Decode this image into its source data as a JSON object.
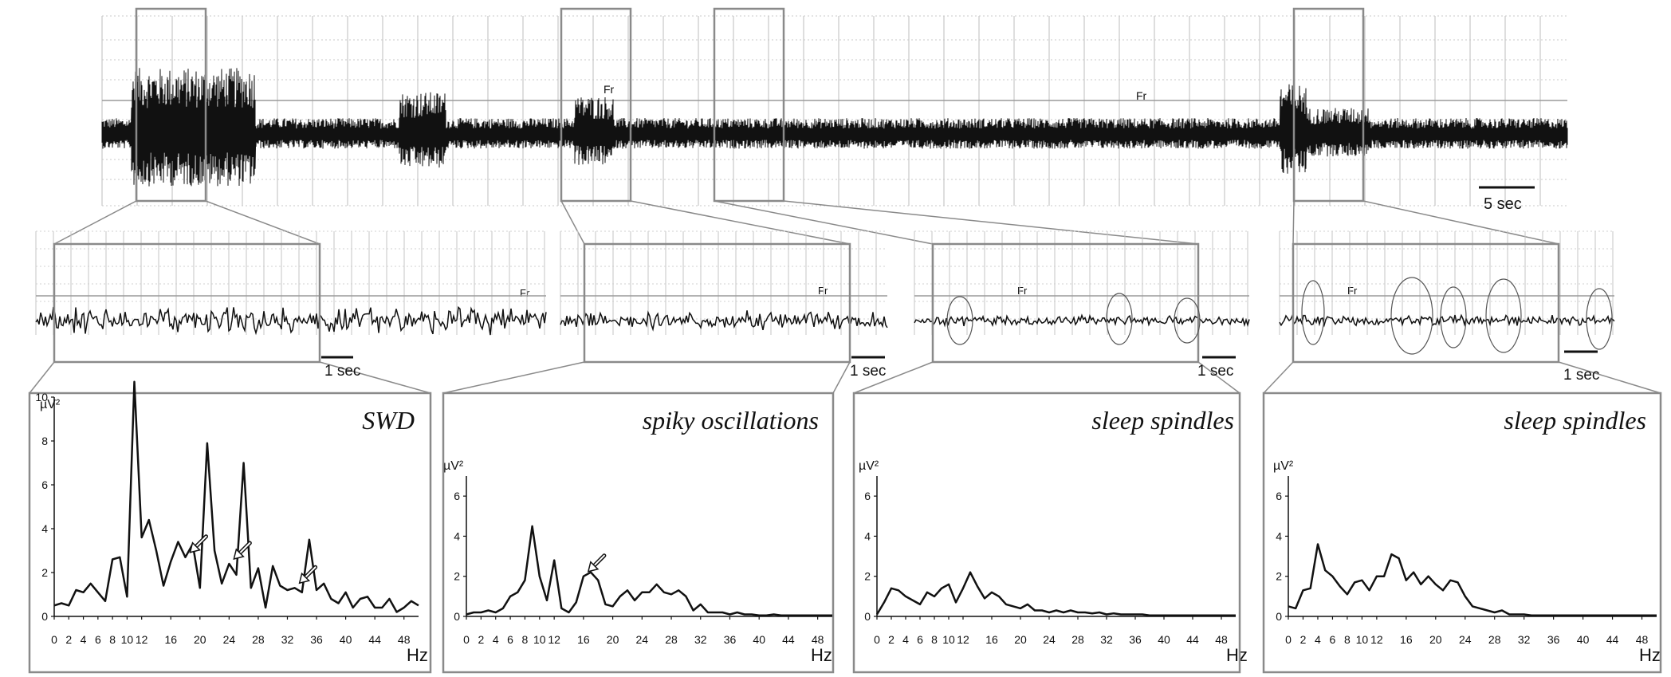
{
  "eeg": {
    "channel_label": "Fr",
    "scale_top": "5 sec",
    "scale_zoom": [
      "1 sec",
      "1 sec",
      "1 sec",
      "1 sec"
    ]
  },
  "chart_data": [
    {
      "type": "line",
      "title": "SWD",
      "ylabel": "µV²",
      "xlabel": "Hz",
      "ylim": [
        0,
        10
      ],
      "yticks": [
        "0",
        "2",
        "4",
        "6",
        "8",
        "10"
      ],
      "xticks": [
        "0",
        "2",
        "4",
        "6",
        "8",
        "10",
        "12",
        "16",
        "20",
        "24",
        "28",
        "32",
        "36",
        "40",
        "44",
        "48"
      ],
      "x": [
        0,
        1,
        2,
        3,
        4,
        5,
        6,
        7,
        8,
        9,
        10,
        11,
        12,
        13,
        14,
        15,
        16,
        17,
        18,
        19,
        20,
        21,
        22,
        23,
        24,
        25,
        26,
        27,
        28,
        29,
        30,
        31,
        32,
        33,
        34,
        35,
        36,
        37,
        38,
        39,
        40,
        41,
        42,
        43,
        44,
        45,
        46,
        47,
        48,
        49,
        50
      ],
      "values": [
        0.5,
        0.6,
        0.5,
        1.2,
        1.1,
        1.5,
        1.1,
        0.7,
        2.6,
        2.7,
        0.9,
        10.7,
        3.6,
        4.4,
        3.0,
        1.4,
        2.5,
        3.4,
        2.7,
        3.3,
        1.3,
        7.9,
        3.0,
        1.5,
        2.4,
        1.9,
        7.0,
        1.3,
        2.2,
        0.4,
        2.3,
        1.4,
        1.2,
        1.3,
        1.1,
        3.5,
        1.2,
        1.5,
        0.8,
        0.6,
        1.1,
        0.4,
        0.8,
        0.9,
        0.4,
        0.4,
        0.8,
        0.2,
        0.4,
        0.7,
        0.5
      ],
      "arrows_at_hz": [
        18,
        24,
        33
      ]
    },
    {
      "type": "line",
      "title": "spiky oscillations",
      "ylabel": "µV²",
      "xlabel": "Hz",
      "ylim": [
        0,
        7
      ],
      "yticks": [
        "0",
        "2",
        "4",
        "6"
      ],
      "xticks": [
        "0",
        "2",
        "4",
        "6",
        "8",
        "10",
        "12",
        "16",
        "20",
        "24",
        "28",
        "32",
        "36",
        "40",
        "44",
        "48"
      ],
      "x": [
        0,
        1,
        2,
        3,
        4,
        5,
        6,
        7,
        8,
        9,
        10,
        11,
        12,
        13,
        14,
        15,
        16,
        17,
        18,
        19,
        20,
        21,
        22,
        23,
        24,
        25,
        26,
        27,
        28,
        29,
        30,
        31,
        32,
        33,
        34,
        35,
        36,
        37,
        38,
        39,
        40,
        41,
        42,
        43,
        44,
        45,
        46,
        47,
        48,
        49,
        50
      ],
      "values": [
        0.1,
        0.2,
        0.2,
        0.3,
        0.2,
        0.4,
        1.0,
        1.2,
        1.8,
        4.5,
        2.0,
        0.8,
        2.8,
        0.4,
        0.2,
        0.7,
        2.0,
        2.2,
        1.8,
        0.6,
        0.5,
        1.0,
        1.3,
        0.8,
        1.2,
        1.2,
        1.6,
        1.2,
        1.1,
        1.3,
        1.0,
        0.3,
        0.6,
        0.2,
        0.2,
        0.2,
        0.1,
        0.2,
        0.1,
        0.1,
        0.05,
        0.05,
        0.1,
        0.05,
        0.05,
        0.05,
        0.05,
        0.05,
        0.05,
        0.05,
        0.05
      ],
      "arrows_at_hz": [
        16
      ]
    },
    {
      "type": "line",
      "title": "sleep spindles",
      "ylabel": "µV²",
      "xlabel": "Hz",
      "ylim": [
        0,
        7
      ],
      "yticks": [
        "0",
        "2",
        "4",
        "6"
      ],
      "xticks": [
        "0",
        "2",
        "4",
        "6",
        "8",
        "10",
        "12",
        "16",
        "20",
        "24",
        "28",
        "32",
        "36",
        "40",
        "44",
        "48"
      ],
      "x": [
        0,
        1,
        2,
        3,
        4,
        5,
        6,
        7,
        8,
        9,
        10,
        11,
        12,
        13,
        14,
        15,
        16,
        17,
        18,
        19,
        20,
        21,
        22,
        23,
        24,
        25,
        26,
        27,
        28,
        29,
        30,
        31,
        32,
        33,
        34,
        35,
        36,
        37,
        38,
        39,
        40,
        41,
        42,
        43,
        44,
        45,
        46,
        47,
        48,
        49,
        50
      ],
      "values": [
        0.1,
        0.7,
        1.4,
        1.3,
        1.0,
        0.8,
        0.6,
        1.2,
        1.0,
        1.4,
        1.6,
        0.7,
        1.4,
        2.2,
        1.5,
        0.9,
        1.2,
        1.0,
        0.6,
        0.5,
        0.4,
        0.6,
        0.3,
        0.3,
        0.2,
        0.3,
        0.2,
        0.3,
        0.2,
        0.2,
        0.15,
        0.2,
        0.1,
        0.15,
        0.1,
        0.1,
        0.1,
        0.1,
        0.05,
        0.05,
        0.05,
        0.05,
        0.05,
        0.05,
        0.05,
        0.05,
        0.05,
        0.05,
        0.05,
        0.05,
        0.05
      ]
    },
    {
      "type": "line",
      "title": "sleep spindles",
      "ylabel": "µV²",
      "xlabel": "Hz",
      "ylim": [
        0,
        7
      ],
      "yticks": [
        "0",
        "2",
        "4",
        "6"
      ],
      "xticks": [
        "0",
        "2",
        "4",
        "6",
        "8",
        "10",
        "12",
        "16",
        "20",
        "24",
        "28",
        "32",
        "36",
        "40",
        "44",
        "48"
      ],
      "x": [
        0,
        1,
        2,
        3,
        4,
        5,
        6,
        7,
        8,
        9,
        10,
        11,
        12,
        13,
        14,
        15,
        16,
        17,
        18,
        19,
        20,
        21,
        22,
        23,
        24,
        25,
        26,
        27,
        28,
        29,
        30,
        31,
        32,
        33,
        34,
        35,
        36,
        37,
        38,
        39,
        40,
        41,
        42,
        43,
        44,
        45,
        46,
        47,
        48,
        49,
        50
      ],
      "values": [
        0.5,
        0.4,
        1.3,
        1.4,
        3.6,
        2.3,
        2.0,
        1.5,
        1.1,
        1.7,
        1.8,
        1.3,
        2.0,
        2.0,
        3.1,
        2.9,
        1.8,
        2.2,
        1.6,
        2.0,
        1.6,
        1.3,
        1.8,
        1.7,
        1.0,
        0.5,
        0.4,
        0.3,
        0.2,
        0.3,
        0.1,
        0.1,
        0.1,
        0.05,
        0.05,
        0.05,
        0.05,
        0.05,
        0.05,
        0.05,
        0.05,
        0.05,
        0.05,
        0.05,
        0.05,
        0.05,
        0.05,
        0.05,
        0.05,
        0.05,
        0.05
      ]
    }
  ]
}
